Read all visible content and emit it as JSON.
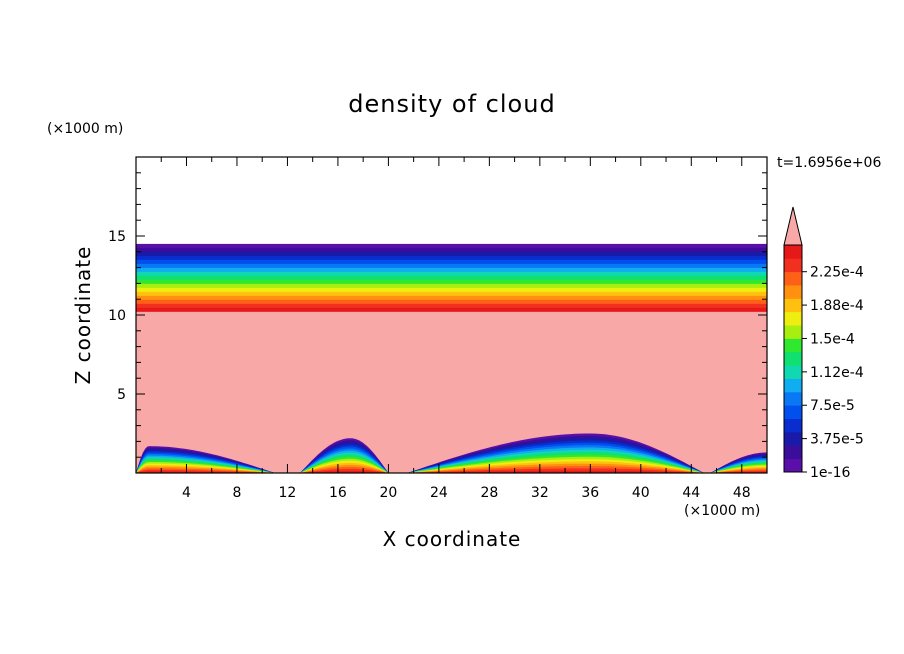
{
  "chart_data": {
    "type": "heatmap",
    "title": "density of cloud",
    "xlabel": "X coordinate",
    "ylabel": "Z coordinate",
    "x_unit": "(×1000 m)",
    "y_unit": "(×1000 m)",
    "time_label": "t=1.6956e+06",
    "xlim": [
      0,
      50
    ],
    "ylim": [
      0,
      20
    ],
    "x_ticks": [
      "4",
      "8",
      "12",
      "16",
      "20",
      "24",
      "28",
      "32",
      "36",
      "40",
      "44",
      "48"
    ],
    "y_ticks": [
      "5",
      "10",
      "15"
    ],
    "colorbar": {
      "labels": [
        "1e-16",
        "3.75e-5",
        "7.5e-5",
        "1.12e-4",
        "1.5e-4",
        "1.88e-4",
        "2.25e-4"
      ],
      "levels": [
        1e-16,
        3.75e-05,
        7.5e-05,
        0.000112,
        0.00015,
        0.000188,
        0.000225
      ],
      "colors": [
        "#5a0fa8",
        "#3a0d9a",
        "#1a1aa8",
        "#0a2dd0",
        "#0050ee",
        "#0a78f5",
        "#10aef0",
        "#10d8b0",
        "#10e070",
        "#30e830",
        "#a8ee10",
        "#eeee10",
        "#ffc010",
        "#ff9010",
        "#ff6018",
        "#f23020",
        "#e61818"
      ],
      "overflow_color": "#f9a8a8",
      "extend": "max"
    },
    "cloud_layer": {
      "base_km": 10.2,
      "top_km": 14.5,
      "description_ordering": "max density at base, decreasing upward"
    },
    "surface_humps": [
      {
        "x_start": 0,
        "x_end": 11,
        "peak_x": 1,
        "peak_z": 1.7
      },
      {
        "x_start": 13,
        "x_end": 20,
        "peak_x": 17,
        "peak_z": 2.2
      },
      {
        "x_start": 21.5,
        "x_end": 45,
        "peak_x": 36,
        "peak_z": 2.5
      },
      {
        "x_start": 45.5,
        "x_end": 50,
        "peak_x": 50,
        "peak_z": 1.3
      }
    ],
    "grid": false
  }
}
